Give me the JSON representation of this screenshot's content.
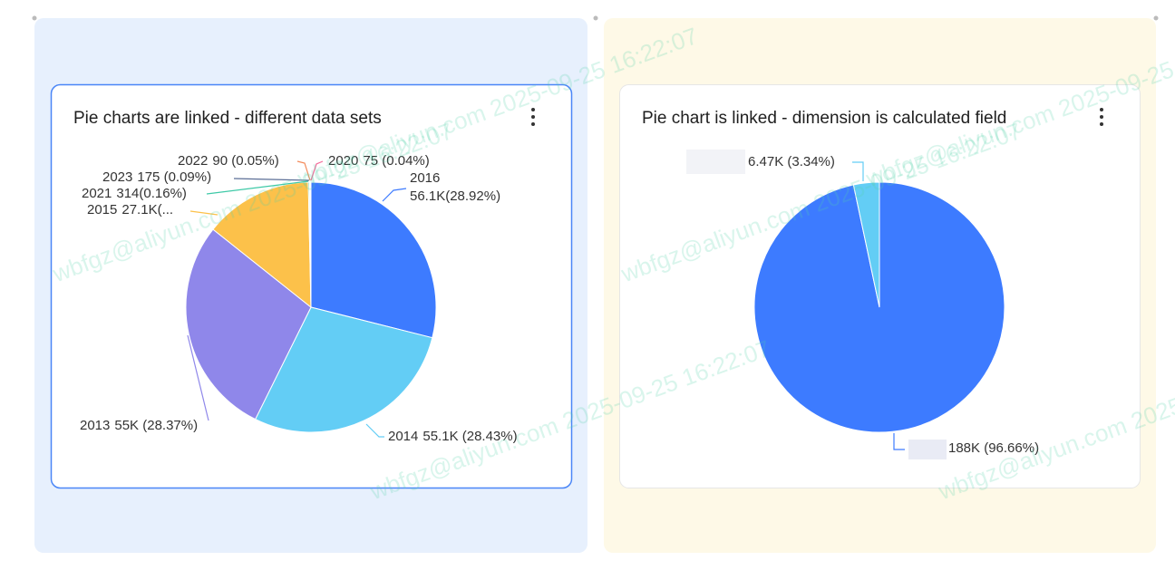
{
  "chart_data": [
    {
      "type": "pie",
      "title": "Pie charts are linked - different data sets",
      "categories": [
        "2016",
        "2014",
        "2013",
        "2015",
        "2021",
        "2023",
        "2022",
        "2020"
      ],
      "values": [
        56100,
        55100,
        55000,
        27100,
        314,
        175,
        90,
        75
      ],
      "value_labels": [
        "56.1K(28.92%)",
        "55.1K (28.43%)",
        "55K (28.37%)",
        "27.1K(...",
        "314(0.16%)",
        "175 (0.09%)",
        "90 (0.05%)",
        "75 (0.04%)"
      ],
      "colors": [
        "#3d7bff",
        "#63cdf5",
        "#8f87ea",
        "#fcc14a",
        "#3ec9a7",
        "#5b6e96",
        "#f38a5a",
        "#f36b9a"
      ]
    },
    {
      "type": "pie",
      "title": "Pie chart is linked - dimension is calculated field",
      "categories": [
        null,
        null
      ],
      "values": [
        188000,
        6470
      ],
      "value_labels": [
        "188K (96.66%)",
        "6.47K (3.34%)"
      ],
      "colors": [
        "#3d7bff",
        "#63cdf5"
      ]
    }
  ],
  "watermark": "wbfgz@aliyun.com 2025-09-25 16:22:07"
}
